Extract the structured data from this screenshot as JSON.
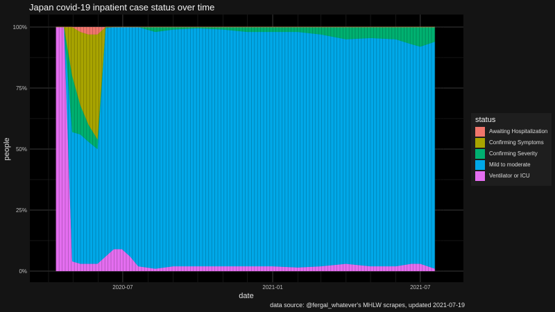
{
  "chart_data": {
    "type": "area",
    "title": "Japan covid-19 inpatient case status over time",
    "xlabel": "date",
    "ylabel": "people",
    "caption": "data source: @fergal_whatever's MHLW scrapes, updated 2021-07-19",
    "x_range": [
      "2020-04-01",
      "2021-07-31"
    ],
    "y_range": [
      0,
      1
    ],
    "y_ticks": [
      "0%",
      "25%",
      "50%",
      "75%",
      "100%"
    ],
    "x_ticks": [
      "2020-07",
      "2021-01",
      "2021-07"
    ],
    "grid": true,
    "legend": {
      "title": "status",
      "position": "right"
    },
    "dates": [
      "2020-04-10",
      "2020-04-20",
      "2020-04-30",
      "2020-05-10",
      "2020-05-20",
      "2020-05-31",
      "2020-06-10",
      "2020-06-20",
      "2020-06-30",
      "2020-07-10",
      "2020-07-20",
      "2020-08-10",
      "2020-09-01",
      "2020-10-01",
      "2020-11-01",
      "2020-12-01",
      "2021-01-01",
      "2021-02-01",
      "2021-03-01",
      "2021-04-01",
      "2021-05-01",
      "2021-06-01",
      "2021-06-20",
      "2021-07-01",
      "2021-07-19"
    ],
    "series": [
      {
        "name": "Ventilator or ICU",
        "color": "#e46ef0",
        "values": [
          1.0,
          1.0,
          0.04,
          0.03,
          0.03,
          0.03,
          0.06,
          0.09,
          0.09,
          0.06,
          0.02,
          0.01,
          0.02,
          0.02,
          0.02,
          0.02,
          0.02,
          0.015,
          0.02,
          0.03,
          0.02,
          0.02,
          0.03,
          0.03,
          0.01
        ]
      },
      {
        "name": "Mild to moderate",
        "color": "#00a8e8",
        "values": [
          0,
          0,
          0.53,
          0.53,
          0.5,
          0.47,
          0.935,
          0.91,
          0.91,
          0.94,
          0.98,
          0.97,
          0.97,
          0.975,
          0.97,
          0.96,
          0.96,
          0.965,
          0.95,
          0.92,
          0.935,
          0.93,
          0.9,
          0.89,
          0.93
        ]
      },
      {
        "name": "Confirming Severity",
        "color": "#00b070",
        "values": [
          0,
          0,
          0.23,
          0.12,
          0.07,
          0.04,
          0.005,
          0,
          0,
          0,
          0,
          0.02,
          0.01,
          0.005,
          0.01,
          0.02,
          0.02,
          0.02,
          0.03,
          0.05,
          0.045,
          0.05,
          0.07,
          0.08,
          0.06
        ]
      },
      {
        "name": "Confirming Symptoms",
        "color": "#a8a400",
        "values": [
          0,
          0,
          0.2,
          0.3,
          0.37,
          0.43,
          0,
          0,
          0,
          0,
          0,
          0,
          0,
          0,
          0,
          0,
          0,
          0,
          0,
          0,
          0,
          0,
          0,
          0,
          0
        ]
      },
      {
        "name": "Awaiting Hospitalization",
        "color": "#f0766c",
        "values": [
          0,
          0,
          0,
          0.02,
          0.03,
          0.03,
          0,
          0,
          0,
          0,
          0,
          0,
          0,
          0,
          0,
          0,
          0,
          0,
          0,
          0,
          0,
          0,
          0,
          0,
          0
        ]
      }
    ],
    "legend_order": [
      "Awaiting Hospitalization",
      "Confirming Symptoms",
      "Confirming Severity",
      "Mild to moderate",
      "Ventilator or ICU"
    ]
  }
}
